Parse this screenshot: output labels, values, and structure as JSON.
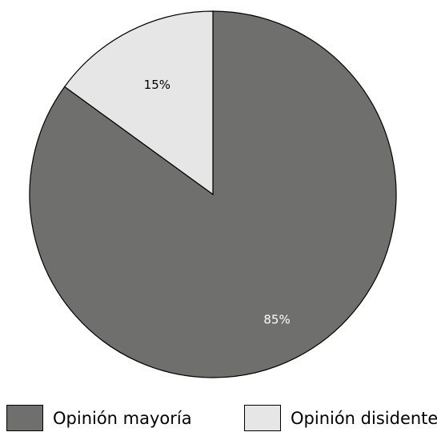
{
  "chart_data": {
    "type": "pie",
    "slices": [
      {
        "label": "Opinión mayoría",
        "value": 85,
        "display": "85%",
        "color": "#6f6f6d",
        "text_color": "#ffffff"
      },
      {
        "label": "Opinión disidente",
        "value": 15,
        "display": "15%",
        "color": "#e6e6e6",
        "text_color": "#000000"
      }
    ],
    "start_angle_deg": 0,
    "direction": "clockwise",
    "legend_position": "bottom"
  }
}
